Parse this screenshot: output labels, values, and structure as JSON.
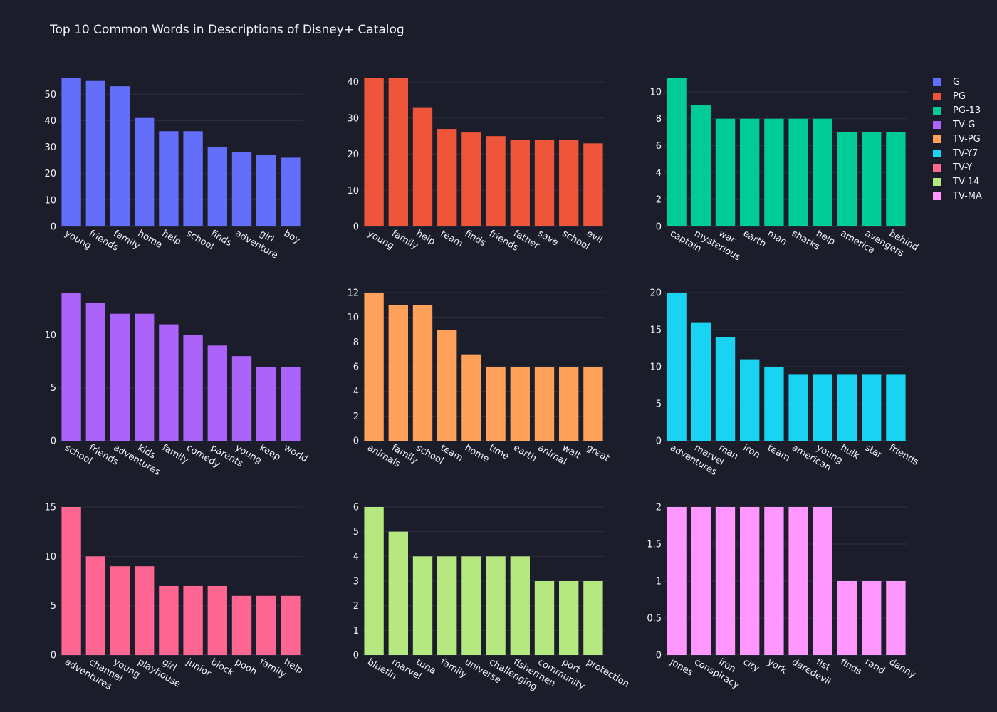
{
  "title": "Top 10 Common Words in Descriptions of Disney+ Catalog",
  "chart_data": [
    {
      "type": "bar",
      "name": "G",
      "color": "#636efa",
      "categories": [
        "young",
        "friends",
        "family",
        "home",
        "help",
        "school",
        "finds",
        "adventure",
        "girl",
        "boy"
      ],
      "values": [
        56,
        55,
        53,
        41,
        36,
        36,
        30,
        28,
        27,
        26
      ],
      "ylim": [
        0,
        56
      ],
      "yticks": [
        0,
        10,
        20,
        30,
        40,
        50
      ],
      "ytick_labels": [
        "0",
        "10",
        "20",
        "30",
        "40",
        "50"
      ]
    },
    {
      "type": "bar",
      "name": "PG",
      "color": "#ef553b",
      "categories": [
        "young",
        "family",
        "help",
        "team",
        "finds",
        "friends",
        "father",
        "save",
        "school",
        "evil"
      ],
      "values": [
        41,
        41,
        33,
        27,
        26,
        25,
        24,
        24,
        24,
        23
      ],
      "ylim": [
        0,
        41
      ],
      "yticks": [
        0,
        10,
        20,
        30,
        40
      ],
      "ytick_labels": [
        "0",
        "10",
        "20",
        "30",
        "40"
      ]
    },
    {
      "type": "bar",
      "name": "PG-13",
      "color": "#00cc96",
      "categories": [
        "captain",
        "mysterious",
        "war",
        "earth",
        "man",
        "sharks",
        "help",
        "america",
        "avengers",
        "behind"
      ],
      "values": [
        11,
        9,
        8,
        8,
        8,
        8,
        8,
        7,
        7,
        7
      ],
      "ylim": [
        0,
        11
      ],
      "yticks": [
        0,
        2,
        4,
        6,
        8,
        10
      ],
      "ytick_labels": [
        "0",
        "2",
        "4",
        "6",
        "8",
        "10"
      ]
    },
    {
      "type": "bar",
      "name": "TV-G",
      "color": "#ab63fa",
      "categories": [
        "school",
        "friends",
        "adventures",
        "kids",
        "family",
        "comedy",
        "parents",
        "young",
        "keep",
        "world"
      ],
      "values": [
        14,
        13,
        12,
        12,
        11,
        10,
        9,
        8,
        7,
        7
      ],
      "ylim": [
        0,
        14
      ],
      "yticks": [
        0,
        5,
        10
      ],
      "ytick_labels": [
        "0",
        "5",
        "10"
      ]
    },
    {
      "type": "bar",
      "name": "TV-PG",
      "color": "#ffa15a",
      "categories": [
        "animals",
        "family",
        "school",
        "team",
        "home",
        "time",
        "earth",
        "animal",
        "walt",
        "great"
      ],
      "values": [
        12,
        11,
        11,
        9,
        7,
        6,
        6,
        6,
        6,
        6
      ],
      "ylim": [
        0,
        12
      ],
      "yticks": [
        0,
        2,
        4,
        6,
        8,
        10,
        12
      ],
      "ytick_labels": [
        "0",
        "2",
        "4",
        "6",
        "8",
        "10",
        "12"
      ]
    },
    {
      "type": "bar",
      "name": "TV-Y7",
      "color": "#19d3f3",
      "categories": [
        "adventures",
        "marvel",
        "man",
        "iron",
        "team",
        "american",
        "young",
        "hulk",
        "star",
        "friends"
      ],
      "values": [
        20,
        16,
        14,
        11,
        10,
        9,
        9,
        9,
        9,
        9
      ],
      "ylim": [
        0,
        20
      ],
      "yticks": [
        0,
        5,
        10,
        15,
        20
      ],
      "ytick_labels": [
        "0",
        "5",
        "10",
        "15",
        "20"
      ]
    },
    {
      "type": "bar",
      "name": "TV-Y",
      "color": "#ff6692",
      "categories": [
        "adventures",
        "channel",
        "young",
        "playhouse",
        "girl",
        "junior",
        "block",
        "pooh",
        "family",
        "help"
      ],
      "values": [
        15,
        10,
        9,
        9,
        7,
        7,
        7,
        6,
        6,
        6
      ],
      "ylim": [
        0,
        15
      ],
      "yticks": [
        0,
        5,
        10,
        15
      ],
      "ytick_labels": [
        "0",
        "5",
        "10",
        "15"
      ]
    },
    {
      "type": "bar",
      "name": "TV-14",
      "color": "#b6e880",
      "categories": [
        "bluefin",
        "marvel",
        "tuna",
        "family",
        "universe",
        "challenging",
        "fishermen",
        "community",
        "port",
        "protection"
      ],
      "values": [
        6,
        5,
        4,
        4,
        4,
        4,
        4,
        3,
        3,
        3
      ],
      "ylim": [
        0,
        6
      ],
      "yticks": [
        0,
        1,
        2,
        3,
        4,
        5,
        6
      ],
      "ytick_labels": [
        "0",
        "1",
        "2",
        "3",
        "4",
        "5",
        "6"
      ]
    },
    {
      "type": "bar",
      "name": "TV-MA",
      "color": "#ff97ff",
      "categories": [
        "jones",
        "conspiracy",
        "iron",
        "city",
        "york",
        "daredevil",
        "fist",
        "finds",
        "rand",
        "danny"
      ],
      "values": [
        2,
        2,
        2,
        2,
        2,
        2,
        2,
        1,
        1,
        1
      ],
      "ylim": [
        0,
        2
      ],
      "yticks": [
        0,
        0.5,
        1,
        1.5,
        2
      ],
      "ytick_labels": [
        "0",
        "0.5",
        "1",
        "1.5",
        "2"
      ]
    }
  ],
  "legend": [
    {
      "label": "G",
      "color": "#636efa"
    },
    {
      "label": "PG",
      "color": "#ef553b"
    },
    {
      "label": "PG-13",
      "color": "#00cc96"
    },
    {
      "label": "TV-G",
      "color": "#ab63fa"
    },
    {
      "label": "TV-PG",
      "color": "#ffa15a"
    },
    {
      "label": "TV-Y7",
      "color": "#19d3f3"
    },
    {
      "label": "TV-Y",
      "color": "#ff6692"
    },
    {
      "label": "TV-14",
      "color": "#b6e880"
    },
    {
      "label": "TV-MA",
      "color": "#ff97ff"
    }
  ]
}
